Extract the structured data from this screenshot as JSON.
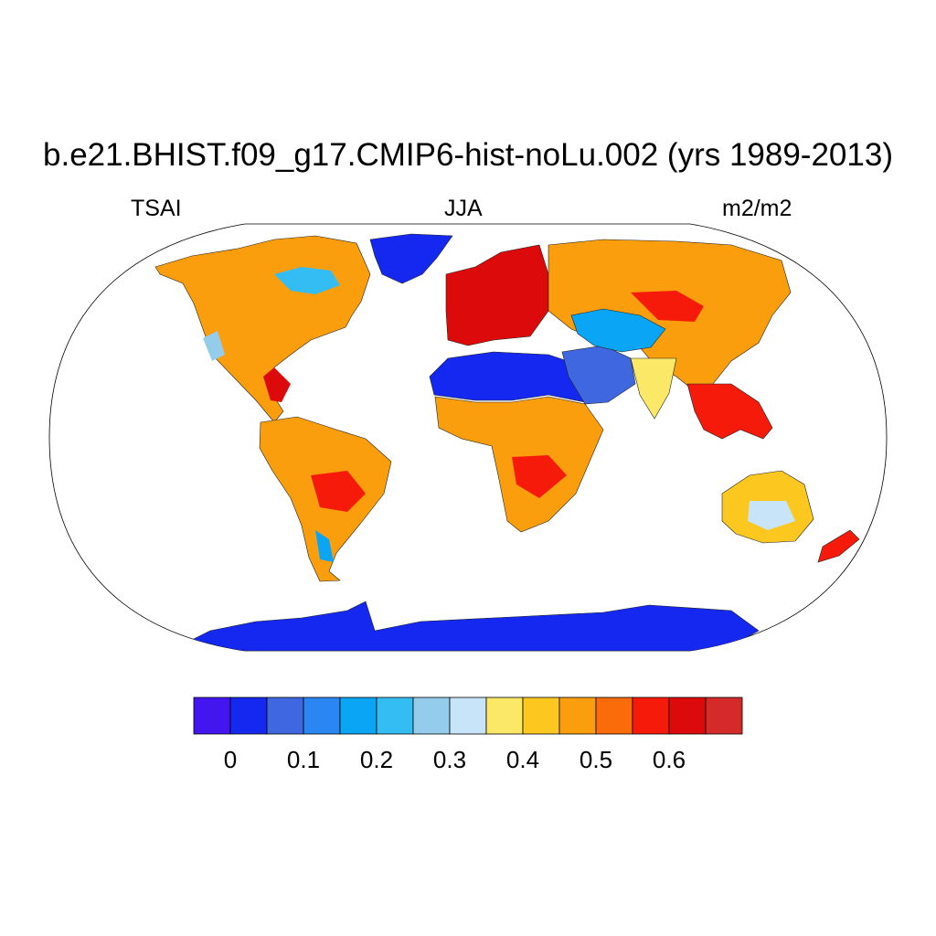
{
  "title": "b.e21.BHIST.f09_g17.CMIP6-hist-noLu.002 (yrs 1989-2013)",
  "left_label": "TSAI",
  "center_label": "JJA",
  "right_label": "m2/m2",
  "map": {
    "projection": "Robinson",
    "variable": "TSAI",
    "season": "JJA",
    "units": "m2/m2",
    "regions": [
      {
        "name": "north-america",
        "level_index": 10
      },
      {
        "name": "greenland",
        "level_index": 1
      },
      {
        "name": "south-america",
        "level_index": 10
      },
      {
        "name": "europe",
        "level_index": 13
      },
      {
        "name": "sahara",
        "level_index": 1
      },
      {
        "name": "sub-saharan-africa",
        "level_index": 10
      },
      {
        "name": "arabia",
        "level_index": 2
      },
      {
        "name": "asia",
        "level_index": 10
      },
      {
        "name": "tibet",
        "level_index": 4
      },
      {
        "name": "india",
        "level_index": 8
      },
      {
        "name": "southeast-asia",
        "level_index": 12
      },
      {
        "name": "australia",
        "level_index": 9
      },
      {
        "name": "new-zealand",
        "level_index": 12
      },
      {
        "name": "antarctica",
        "level_index": 1
      }
    ]
  },
  "colorbar": {
    "colors": [
      "#4316f0",
      "#1428f0",
      "#3f68e0",
      "#2a86f2",
      "#0aa6f5",
      "#34bdf3",
      "#94ccec",
      "#c8e4f8",
      "#fbe866",
      "#fcc820",
      "#fb9e0e",
      "#fa6c0a",
      "#f61a0a",
      "#dc0a0a",
      "#d42a2a"
    ],
    "ticks": [
      "0",
      "0.1",
      "0.2",
      "0.3",
      "0.4",
      "0.5",
      "0.6"
    ]
  }
}
